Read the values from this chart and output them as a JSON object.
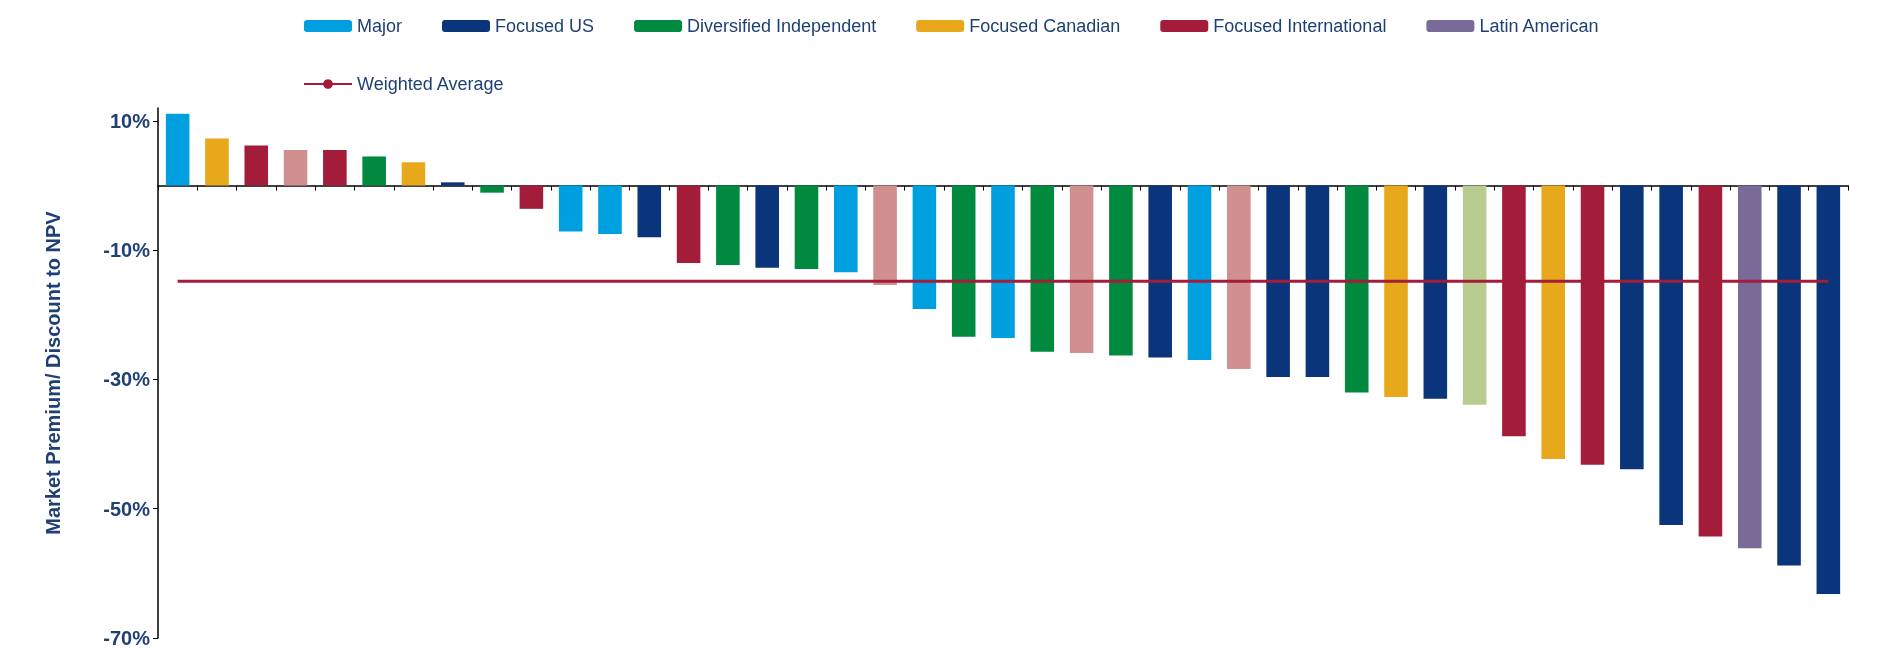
{
  "chart_data": {
    "type": "bar",
    "stacked": true,
    "ylabel": "Market Premium/ Discount to NPV",
    "categories": [
      null,
      null,
      null,
      null,
      null,
      null,
      null,
      null,
      null,
      null,
      null,
      null,
      null,
      null,
      null,
      null,
      null,
      null,
      null,
      null,
      null,
      null,
      null,
      null,
      null,
      null,
      null,
      null,
      null,
      null,
      null,
      null,
      null,
      null,
      null,
      null,
      null,
      null,
      null,
      null,
      null,
      null,
      null
    ],
    "ylim": [
      -70,
      12
    ],
    "yticks": [
      {
        "value": -70,
        "label": "-70%"
      },
      {
        "value": -50,
        "label": "-50%"
      },
      {
        "value": -30,
        "label": "-30%"
      },
      {
        "value": -10,
        "label": "-10%"
      },
      {
        "value": 10,
        "label": "10%"
      }
    ],
    "tick_labels": "y",
    "grid": false,
    "legend": "top",
    "marker": "none",
    "series": [
      {
        "name": "Major",
        "color": "#00a0e0",
        "values": [
          11.1,
          null,
          null,
          null,
          null,
          null,
          null,
          null,
          null,
          null,
          -7.1,
          -7.5,
          null,
          null,
          null,
          null,
          null,
          -13.4,
          null,
          -19.1,
          null,
          -23.6,
          null,
          null,
          null,
          null,
          -27.0,
          null,
          null,
          null,
          null,
          null,
          null,
          null,
          null,
          null,
          null,
          null,
          null,
          null,
          null,
          null,
          null
        ]
      },
      {
        "name": "Focused US",
        "color": "#0a357a",
        "values": [
          null,
          null,
          null,
          null,
          null,
          null,
          null,
          0.5,
          null,
          null,
          null,
          null,
          -8.0,
          null,
          null,
          -12.7,
          null,
          null,
          null,
          null,
          null,
          null,
          null,
          null,
          null,
          -26.6,
          null,
          null,
          -29.6,
          -29.6,
          null,
          null,
          -33.0,
          null,
          null,
          null,
          null,
          -43.9,
          -52.5,
          null,
          null,
          -58.8,
          -63.2
        ]
      },
      {
        "name": "Diversified Independent",
        "color": "#00893f",
        "values": [
          null,
          null,
          null,
          null,
          null,
          4.5,
          null,
          null,
          -1.1,
          null,
          null,
          null,
          null,
          null,
          -12.3,
          null,
          -12.9,
          null,
          null,
          null,
          -23.4,
          null,
          -25.7,
          null,
          -26.3,
          null,
          null,
          null,
          null,
          null,
          -32.0,
          null,
          null,
          null,
          null,
          null,
          null,
          null,
          null,
          null,
          null,
          null,
          null
        ]
      },
      {
        "name": "Focused Canadian",
        "color": "#e8a81c",
        "values": [
          null,
          7.3,
          null,
          null,
          null,
          null,
          3.6,
          null,
          null,
          null,
          null,
          null,
          null,
          null,
          null,
          null,
          null,
          null,
          null,
          null,
          null,
          null,
          null,
          null,
          null,
          null,
          null,
          null,
          null,
          null,
          null,
          -32.7,
          null,
          null,
          null,
          -42.3,
          null,
          null,
          null,
          null,
          null,
          null,
          null
        ]
      },
      {
        "name": "Focused International",
        "color": "#a31c3a",
        "values": [
          null,
          null,
          6.2,
          null,
          5.5,
          null,
          null,
          null,
          null,
          -3.6,
          null,
          null,
          null,
          -12.0,
          null,
          null,
          null,
          null,
          null,
          null,
          null,
          null,
          null,
          null,
          null,
          null,
          null,
          null,
          null,
          null,
          null,
          null,
          null,
          null,
          -38.8,
          null,
          -43.2,
          null,
          null,
          -54.3,
          null,
          null,
          null
        ]
      },
      {
        "name": "Latin American",
        "color": "#7a6a98",
        "values": [
          null,
          null,
          null,
          null,
          null,
          null,
          null,
          null,
          null,
          null,
          null,
          null,
          null,
          null,
          null,
          null,
          null,
          null,
          null,
          null,
          null,
          null,
          null,
          null,
          null,
          null,
          null,
          null,
          null,
          null,
          null,
          null,
          null,
          null,
          null,
          null,
          null,
          null,
          null,
          null,
          -56.1,
          null,
          null
        ]
      },
      {
        "color": "#d09090",
        "values": [
          null,
          null,
          null,
          5.5,
          null,
          null,
          null,
          null,
          null,
          null,
          null,
          null,
          null,
          null,
          null,
          null,
          null,
          null,
          -15.4,
          null,
          null,
          null,
          null,
          -25.9,
          null,
          null,
          null,
          -28.4,
          null,
          null,
          null,
          null,
          null,
          null,
          null,
          null,
          null,
          null,
          null,
          null,
          null,
          null,
          null
        ]
      },
      {
        "color": "#b8cc90",
        "values": [
          null,
          null,
          null,
          null,
          null,
          null,
          null,
          null,
          null,
          null,
          null,
          null,
          null,
          null,
          null,
          null,
          null,
          null,
          null,
          null,
          null,
          null,
          null,
          null,
          null,
          null,
          null,
          null,
          null,
          null,
          null,
          null,
          null,
          -33.9,
          null,
          null,
          null,
          null,
          null,
          null,
          null,
          null,
          null
        ]
      },
      {
        "name": "Weighted Average",
        "type": "line",
        "color": "#a31c3a",
        "values": [
          -14.8,
          -14.8,
          -14.8,
          -14.8,
          -14.8,
          -14.8,
          -14.8,
          -14.8,
          -14.8,
          -14.8,
          -14.8,
          -14.8,
          -14.8,
          -14.8,
          -14.8,
          -14.8,
          -14.8,
          -14.8,
          -14.8,
          -14.8,
          -14.8,
          -14.8,
          -14.8,
          -14.8,
          -14.8,
          -14.8,
          -14.8,
          -14.8,
          -14.8,
          -14.8,
          -14.8,
          -14.8,
          -14.8,
          -14.8,
          -14.8,
          -14.8,
          -14.8,
          -14.8,
          -14.8,
          -14.8,
          -14.8,
          -14.8,
          -14.8
        ]
      }
    ]
  }
}
